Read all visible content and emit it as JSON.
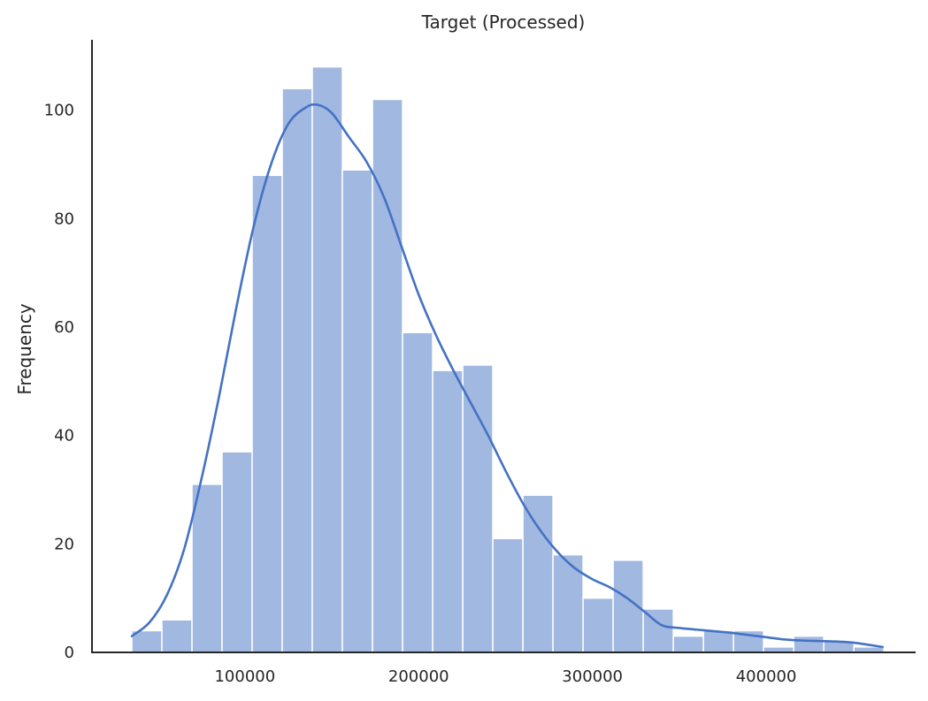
{
  "chart_data": {
    "type": "bar",
    "title": "Target (Processed)",
    "xlabel": "",
    "ylabel": "Frequency",
    "xlim": [
      12000,
      486000
    ],
    "ylim": [
      0,
      113
    ],
    "xticks": [
      100000,
      200000,
      300000,
      400000
    ],
    "xtick_labels": [
      "100000",
      "200000",
      "300000",
      "400000"
    ],
    "yticks": [
      0,
      20,
      40,
      60,
      80,
      100
    ],
    "ytick_labels": [
      "0",
      "20",
      "40",
      "60",
      "80",
      "100"
    ],
    "bin_start": 34900,
    "bin_width": 17315,
    "values": [
      4,
      6,
      31,
      37,
      88,
      104,
      108,
      89,
      102,
      59,
      52,
      53,
      21,
      29,
      18,
      10,
      17,
      8,
      3,
      4,
      4,
      1,
      3,
      2,
      1
    ],
    "kde": {
      "x": [
        34900,
        45000,
        55000,
        65000,
        75000,
        85000,
        95000,
        105000,
        115000,
        125000,
        135000,
        142000,
        150000,
        160000,
        170000,
        180000,
        190000,
        200000,
        210000,
        220000,
        230000,
        240000,
        250000,
        260000,
        270000,
        280000,
        290000,
        300000,
        310000,
        320000,
        330000,
        340000,
        350000,
        360000,
        370000,
        380000,
        390000,
        400000,
        410000,
        420000,
        430000,
        440000,
        450000,
        467000
      ],
      "y": [
        3,
        5.5,
        10.5,
        19,
        32,
        47,
        63.5,
        78.5,
        90,
        97.5,
        100.5,
        101,
        99.5,
        95,
        90.5,
        84,
        75,
        66,
        58.5,
        52,
        46,
        40,
        33.5,
        27.5,
        22.5,
        18.5,
        15.5,
        13.5,
        12,
        10,
        7.5,
        5,
        4.5,
        4.2,
        3.9,
        3.6,
        3.2,
        2.8,
        2.4,
        2.2,
        2.1,
        2,
        1.8,
        1
      ]
    },
    "colors": {
      "bar": "#a1b8e1",
      "bar_edge": "#ffffff",
      "line": "#4472c4",
      "axis": "#262626",
      "text": "#262626"
    },
    "grid": false,
    "legend": "none"
  }
}
